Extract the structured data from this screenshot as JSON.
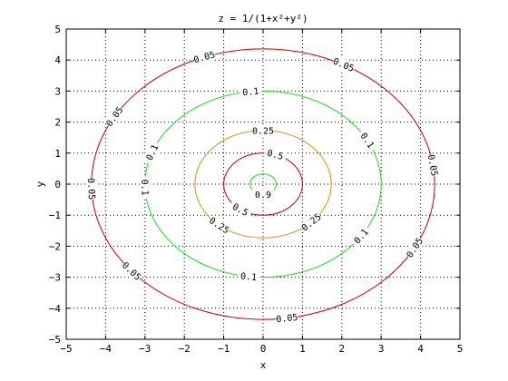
{
  "chart_data": {
    "type": "contour",
    "title": "z = 1/(1+x²+y²)",
    "xlabel": "x",
    "ylabel": "y",
    "xlim": [
      -5,
      5
    ],
    "ylim": [
      -5,
      5
    ],
    "xticks": [
      "−5",
      "−4",
      "−3",
      "−2",
      "−1",
      "0",
      "1",
      "2",
      "3",
      "4",
      "5"
    ],
    "yticks": [
      "−5",
      "−4",
      "−3",
      "−2",
      "−1",
      "0",
      "1",
      "2",
      "3",
      "4",
      "5"
    ],
    "grid": true,
    "levels": [
      {
        "value": 0.05,
        "radius": 4.359,
        "color": "#cc0000",
        "labels": [
          {
            "text": "0.05",
            "angle": 110
          },
          {
            "text": "0.05",
            "angle": 62
          },
          {
            "text": "0.05",
            "angle": 150
          },
          {
            "text": "0.05",
            "angle": 8
          },
          {
            "text": "0.05",
            "angle": 182
          },
          {
            "text": "0.05",
            "angle": -28
          },
          {
            "text": "0.05",
            "angle": -140
          },
          {
            "text": "0.05",
            "angle": -82
          }
        ]
      },
      {
        "value": 0.1,
        "radius": 3.0,
        "color": "#22dd22",
        "labels": [
          {
            "text": "0.1",
            "angle": 96
          },
          {
            "text": "0.1",
            "angle": 28
          },
          {
            "text": "0.1",
            "angle": 160
          },
          {
            "text": "0.1",
            "angle": 182
          },
          {
            "text": "0.1",
            "angle": -34
          },
          {
            "text": "0.1",
            "angle": -97
          }
        ]
      },
      {
        "value": 0.25,
        "radius": 1.732,
        "color": "#e08a10",
        "labels": [
          {
            "text": "0.25",
            "angle": 90
          },
          {
            "text": "0.25",
            "angle": -130
          },
          {
            "text": "0.25",
            "angle": -45
          }
        ]
      },
      {
        "value": 0.5,
        "radius": 1.0,
        "color": "#cc0000",
        "labels": [
          {
            "text": "0.5",
            "angle": 72
          },
          {
            "text": "0.5",
            "angle": -125
          }
        ]
      },
      {
        "value": 0.9,
        "radius": 0.333,
        "color": "#22dd22",
        "labels": [
          {
            "text": "0.9",
            "angle": -90
          }
        ]
      }
    ]
  }
}
